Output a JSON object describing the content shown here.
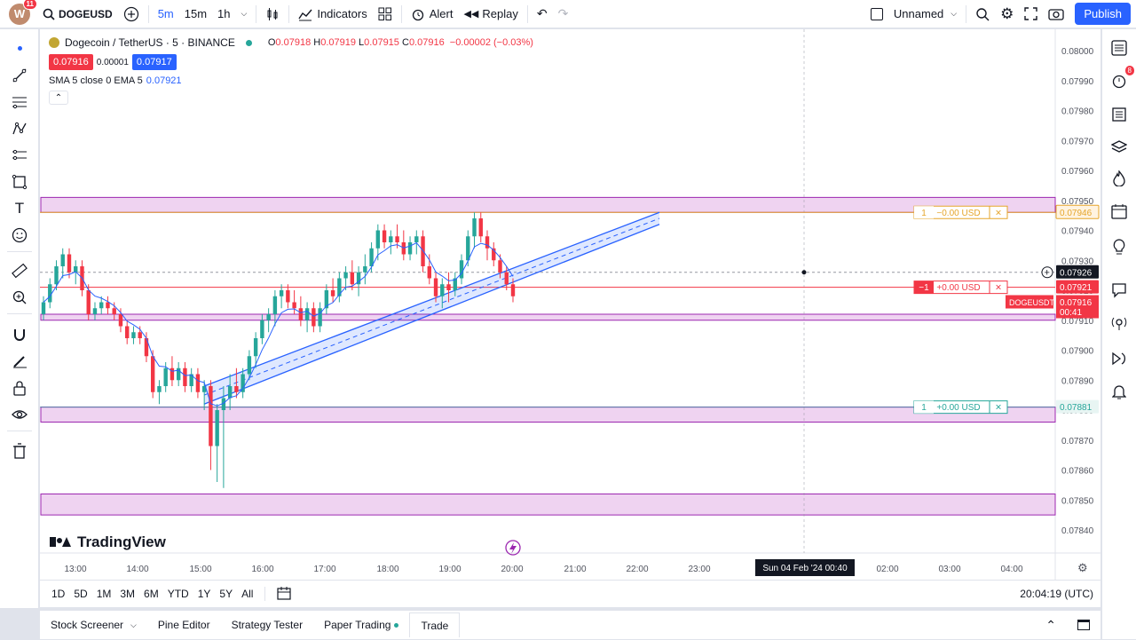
{
  "topbar": {
    "avatar_letter": "W",
    "avatar_badge": "11",
    "symbol": "DOGEUSD",
    "timeframes": [
      "5m",
      "15m",
      "1h"
    ],
    "indicators_label": "Indicators",
    "alert_label": "Alert",
    "replay_label": "Replay",
    "layout_name": "Unnamed",
    "publish_label": "Publish"
  },
  "legend": {
    "title": "Dogecoin / TetherUS · 5 · BINANCE",
    "open_label": "O",
    "open": "0.07918",
    "high_label": "H",
    "high": "0.07919",
    "low_label": "L",
    "low": "0.07915",
    "close_label": "C",
    "close": "0.07916",
    "change": "−0.00002 (−0.03%)",
    "sell_price": "0.07916",
    "spread": "0.00001",
    "buy_price": "0.07917",
    "indicator_label": "SMA 5 close 0 EMA 5",
    "indicator_value": "0.07921"
  },
  "price_axis": [
    "0.08000",
    "0.07990",
    "0.07980",
    "0.07970",
    "0.07960",
    "0.07950",
    "0.07940",
    "0.07930",
    "0.07920",
    "0.07910",
    "0.07900",
    "0.07890",
    "0.07880",
    "0.07870",
    "0.07860",
    "0.07850",
    "0.07840"
  ],
  "price_tags": {
    "tp_price": "0.07946",
    "crosshair_price": "0.07926",
    "last_price": "0.07921",
    "symbol_tag": "DOGEUSDT",
    "current_price": "0.07916",
    "countdown": "00:41",
    "sl_price": "0.07881"
  },
  "orders": {
    "top": {
      "qty": "1",
      "pnl": "−0.00 USD",
      "close": "×"
    },
    "middle": {
      "qty": "−1",
      "pnl": "+0.00 USD",
      "close": "×"
    },
    "bottom": {
      "qty": "1",
      "pnl": "+0.00 USD",
      "close": "×"
    }
  },
  "time_axis": [
    "13:00",
    "14:00",
    "15:00",
    "16:00",
    "17:00",
    "18:00",
    "19:00",
    "20:00",
    "21:00",
    "22:00",
    "23:00",
    "02:00",
    "03:00",
    "04:00"
  ],
  "crosshair_time": "Sun 04 Feb '24   00:40",
  "watermark": "TradingView",
  "ranges": [
    "1D",
    "5D",
    "1M",
    "3M",
    "6M",
    "YTD",
    "1Y",
    "5Y",
    "All"
  ],
  "clock": "20:04:19 (UTC)",
  "panel_tabs": [
    "Stock Screener",
    "Pine Editor",
    "Strategy Tester",
    "Paper Trading",
    "Trade"
  ],
  "right_badge": "8",
  "colors": {
    "up": "#26a69a",
    "down": "#f23645",
    "accent": "#2962ff",
    "zone": "#e9c4ec",
    "zone_border": "#9c27b0"
  },
  "chart_data": {
    "type": "candlestick",
    "symbol": "DOGEUSDT",
    "interval": "5",
    "ylim": [
      0.0784,
      0.08
    ],
    "candles": [
      [
        0.07912,
        0.07918,
        0.0791,
        0.07916
      ],
      [
        0.07916,
        0.07924,
        0.07914,
        0.07922
      ],
      [
        0.07922,
        0.0793,
        0.0792,
        0.07928
      ],
      [
        0.07928,
        0.07934,
        0.07924,
        0.07932
      ],
      [
        0.07932,
        0.07934,
        0.07924,
        0.07926
      ],
      [
        0.07926,
        0.0793,
        0.07922,
        0.07928
      ],
      [
        0.07928,
        0.0793,
        0.07918,
        0.0792
      ],
      [
        0.0792,
        0.07922,
        0.0791,
        0.07912
      ],
      [
        0.07912,
        0.07916,
        0.0791,
        0.07914
      ],
      [
        0.07914,
        0.07918,
        0.07912,
        0.07916
      ],
      [
        0.07916,
        0.07918,
        0.07912,
        0.07914
      ],
      [
        0.07914,
        0.07916,
        0.0791,
        0.07912
      ],
      [
        0.07912,
        0.07914,
        0.07906,
        0.07908
      ],
      [
        0.07908,
        0.0791,
        0.07902,
        0.07904
      ],
      [
        0.07904,
        0.07908,
        0.07902,
        0.07906
      ],
      [
        0.07906,
        0.07908,
        0.07902,
        0.07904
      ],
      [
        0.07904,
        0.07906,
        0.07896,
        0.07898
      ],
      [
        0.07898,
        0.079,
        0.07884,
        0.07886
      ],
      [
        0.07886,
        0.0789,
        0.07882,
        0.07888
      ],
      [
        0.07888,
        0.07896,
        0.07886,
        0.07894
      ],
      [
        0.07894,
        0.07898,
        0.07888,
        0.0789
      ],
      [
        0.0789,
        0.07896,
        0.07888,
        0.07894
      ],
      [
        0.07894,
        0.07896,
        0.07886,
        0.07888
      ],
      [
        0.07888,
        0.07894,
        0.07886,
        0.07892
      ],
      [
        0.07892,
        0.07894,
        0.07884,
        0.07886
      ],
      [
        0.07886,
        0.0789,
        0.0788,
        0.07888
      ],
      [
        0.07888,
        0.0789,
        0.0786,
        0.07868
      ],
      [
        0.07868,
        0.07882,
        0.07856,
        0.0788
      ],
      [
        0.0788,
        0.07888,
        0.07854,
        0.07884
      ],
      [
        0.07884,
        0.07892,
        0.0788,
        0.07888
      ],
      [
        0.07888,
        0.07894,
        0.07884,
        0.07886
      ],
      [
        0.07886,
        0.07894,
        0.07884,
        0.07892
      ],
      [
        0.07892,
        0.079,
        0.0789,
        0.07898
      ],
      [
        0.07898,
        0.07906,
        0.07894,
        0.07904
      ],
      [
        0.07904,
        0.07912,
        0.07902,
        0.0791
      ],
      [
        0.0791,
        0.07914,
        0.07906,
        0.07912
      ],
      [
        0.07912,
        0.0792,
        0.07908,
        0.07918
      ],
      [
        0.07918,
        0.07922,
        0.07914,
        0.0792
      ],
      [
        0.0792,
        0.07922,
        0.07914,
        0.07916
      ],
      [
        0.07916,
        0.0792,
        0.07912,
        0.07914
      ],
      [
        0.07914,
        0.07918,
        0.07908,
        0.0791
      ],
      [
        0.0791,
        0.07916,
        0.07906,
        0.07914
      ],
      [
        0.07914,
        0.07916,
        0.07906,
        0.07908
      ],
      [
        0.07908,
        0.07916,
        0.07906,
        0.07914
      ],
      [
        0.07914,
        0.07922,
        0.07912,
        0.0792
      ],
      [
        0.0792,
        0.07924,
        0.07916,
        0.07918
      ],
      [
        0.07918,
        0.07926,
        0.07916,
        0.07924
      ],
      [
        0.07924,
        0.07928,
        0.0792,
        0.07926
      ],
      [
        0.07926,
        0.0793,
        0.0792,
        0.07922
      ],
      [
        0.07922,
        0.07928,
        0.07918,
        0.07926
      ],
      [
        0.07926,
        0.07932,
        0.07922,
        0.07928
      ],
      [
        0.07928,
        0.07936,
        0.07926,
        0.07934
      ],
      [
        0.07934,
        0.07942,
        0.0793,
        0.0794
      ],
      [
        0.0794,
        0.07942,
        0.07934,
        0.07936
      ],
      [
        0.07936,
        0.0794,
        0.07932,
        0.07938
      ],
      [
        0.07938,
        0.07942,
        0.07934,
        0.07936
      ],
      [
        0.07936,
        0.0794,
        0.0793,
        0.07932
      ],
      [
        0.07932,
        0.07938,
        0.0793,
        0.07936
      ],
      [
        0.07936,
        0.0794,
        0.07932,
        0.07938
      ],
      [
        0.07938,
        0.0794,
        0.07926,
        0.07928
      ],
      [
        0.07928,
        0.07932,
        0.07922,
        0.07924
      ],
      [
        0.07924,
        0.07926,
        0.07916,
        0.07918
      ],
      [
        0.07918,
        0.07924,
        0.07914,
        0.07922
      ],
      [
        0.07922,
        0.07926,
        0.07916,
        0.0792
      ],
      [
        0.0792,
        0.07926,
        0.07918,
        0.07924
      ],
      [
        0.07924,
        0.07932,
        0.07922,
        0.0793
      ],
      [
        0.0793,
        0.0794,
        0.07928,
        0.07938
      ],
      [
        0.07938,
        0.07946,
        0.07934,
        0.07944
      ],
      [
        0.07944,
        0.07946,
        0.07936,
        0.07938
      ],
      [
        0.07938,
        0.0794,
        0.0793,
        0.07934
      ],
      [
        0.07934,
        0.07936,
        0.07928,
        0.0793
      ],
      [
        0.0793,
        0.07932,
        0.07924,
        0.07926
      ],
      [
        0.07926,
        0.07928,
        0.0792,
        0.07922
      ],
      [
        0.07922,
        0.07924,
        0.07916,
        0.07918
      ]
    ],
    "zones": [
      [
        0.07946,
        0.07951
      ],
      [
        0.0791,
        0.07912
      ],
      [
        0.07876,
        0.07881
      ],
      [
        0.07845,
        0.07852
      ]
    ],
    "channel": {
      "from": [
        0.07882,
        0.07888
      ],
      "to": [
        0.07946,
        0.07942
      ]
    }
  }
}
